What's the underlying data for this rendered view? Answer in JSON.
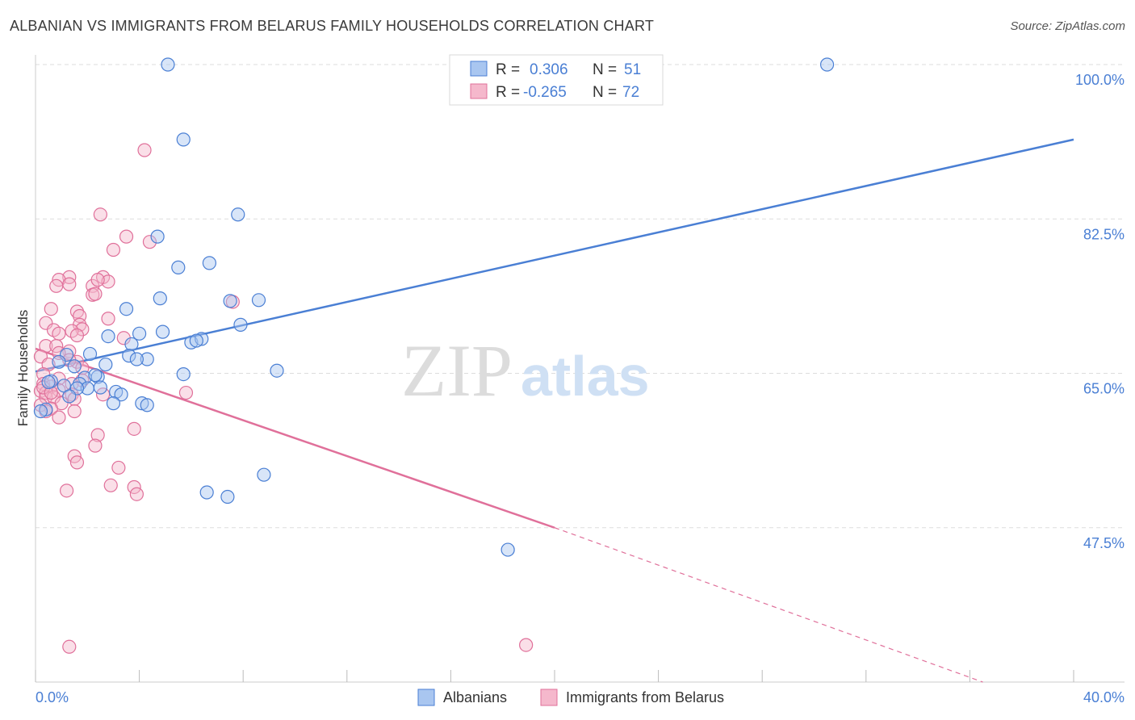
{
  "header": {
    "title": "ALBANIAN VS IMMIGRANTS FROM BELARUS FAMILY HOUSEHOLDS CORRELATION CHART",
    "source": "Source: ZipAtlas.com"
  },
  "colors": {
    "blue": "#4a7fd4",
    "blue_fill": "#a9c6f0",
    "pink": "#e0709a",
    "pink_fill": "#f5b8cc",
    "axis_label": "#4a7fd4",
    "grid": "#dddddd"
  },
  "watermark": {
    "zip": "ZIP",
    "atlas": "atlas"
  },
  "chart_data": {
    "type": "scatter",
    "title": "ALBANIAN VS IMMIGRANTS FROM BELARUS FAMILY HOUSEHOLDS CORRELATION CHART",
    "xlabel": "",
    "ylabel": "Family Households",
    "xlim": [
      0,
      40
    ],
    "ylim": [
      30,
      100
    ],
    "x_tick_labels": [
      "0.0%",
      "40.0%"
    ],
    "y_ticks": [
      47.5,
      65.0,
      82.5,
      100.0
    ],
    "y_tick_labels": [
      "47.5%",
      "65.0%",
      "82.5%",
      "100.0%"
    ],
    "legend_stats": [
      {
        "r_label": "R =",
        "r_value": "0.306",
        "n_label": "N =",
        "n_value": "51"
      },
      {
        "r_label": "R =",
        "r_value": "-0.265",
        "n_label": "N =",
        "n_value": "72"
      }
    ],
    "legend_bottom": [
      "Albanians",
      "Immigrants from Belarus"
    ],
    "series": [
      {
        "name": "Albanians",
        "trend": {
          "x0": 0.0,
          "y0": 65.2,
          "x1": 40.0,
          "y1": 91.5
        },
        "points": [
          [
            5.1,
            100.0
          ],
          [
            30.5,
            100.0
          ],
          [
            5.7,
            91.5
          ],
          [
            7.8,
            83.0
          ],
          [
            4.7,
            80.5
          ],
          [
            5.5,
            77.0
          ],
          [
            6.7,
            77.5
          ],
          [
            4.8,
            73.5
          ],
          [
            8.6,
            73.3
          ],
          [
            7.5,
            73.2
          ],
          [
            3.5,
            72.3
          ],
          [
            7.9,
            70.5
          ],
          [
            4.0,
            69.5
          ],
          [
            4.9,
            69.7
          ],
          [
            2.8,
            69.2
          ],
          [
            6.0,
            68.5
          ],
          [
            6.4,
            68.9
          ],
          [
            6.2,
            68.7
          ],
          [
            3.7,
            68.3
          ],
          [
            3.6,
            67.0
          ],
          [
            4.3,
            66.6
          ],
          [
            3.9,
            66.6
          ],
          [
            2.1,
            67.2
          ],
          [
            1.2,
            67.1
          ],
          [
            0.9,
            66.3
          ],
          [
            1.5,
            65.8
          ],
          [
            2.7,
            66.0
          ],
          [
            9.3,
            65.3
          ],
          [
            5.7,
            64.9
          ],
          [
            2.4,
            64.6
          ],
          [
            1.9,
            64.5
          ],
          [
            0.6,
            64.1
          ],
          [
            1.7,
            63.8
          ],
          [
            1.1,
            63.6
          ],
          [
            2.0,
            63.3
          ],
          [
            2.5,
            63.4
          ],
          [
            1.6,
            63.3
          ],
          [
            3.1,
            62.9
          ],
          [
            3.3,
            62.6
          ],
          [
            1.3,
            62.4
          ],
          [
            4.1,
            61.6
          ],
          [
            4.3,
            61.4
          ],
          [
            3.0,
            61.6
          ],
          [
            0.4,
            60.9
          ],
          [
            0.2,
            60.7
          ],
          [
            8.8,
            53.5
          ],
          [
            6.6,
            51.5
          ],
          [
            7.4,
            51.0
          ],
          [
            18.2,
            45.0
          ],
          [
            0.5,
            64.0
          ],
          [
            2.3,
            64.8
          ]
        ]
      },
      {
        "name": "Immigrants from Belarus",
        "trend": {
          "x0": 0.0,
          "y0": 67.8,
          "x1": 20.0,
          "y1": 47.5
        },
        "trend_dashed": {
          "x0": 20.0,
          "y0": 47.5,
          "x1": 36.5,
          "y1": 30.0
        },
        "points": [
          [
            4.2,
            90.3
          ],
          [
            2.5,
            83.0
          ],
          [
            3.5,
            80.5
          ],
          [
            4.4,
            79.9
          ],
          [
            3.0,
            79.0
          ],
          [
            1.3,
            75.9
          ],
          [
            2.6,
            75.9
          ],
          [
            2.8,
            75.4
          ],
          [
            0.9,
            75.6
          ],
          [
            1.3,
            75.1
          ],
          [
            0.8,
            74.9
          ],
          [
            2.2,
            74.9
          ],
          [
            2.4,
            75.6
          ],
          [
            2.2,
            73.9
          ],
          [
            2.3,
            74.0
          ],
          [
            7.6,
            73.1
          ],
          [
            0.6,
            72.3
          ],
          [
            1.6,
            72.0
          ],
          [
            1.7,
            71.5
          ],
          [
            2.8,
            71.2
          ],
          [
            1.7,
            70.5
          ],
          [
            0.4,
            70.7
          ],
          [
            1.8,
            70.0
          ],
          [
            0.7,
            69.9
          ],
          [
            1.4,
            69.8
          ],
          [
            3.4,
            69.0
          ],
          [
            0.9,
            69.5
          ],
          [
            1.6,
            69.3
          ],
          [
            0.4,
            68.1
          ],
          [
            0.8,
            68.1
          ],
          [
            1.3,
            67.5
          ],
          [
            0.9,
            67.3
          ],
          [
            0.2,
            66.9
          ],
          [
            1.6,
            66.3
          ],
          [
            1.3,
            66.5
          ],
          [
            0.5,
            66.0
          ],
          [
            1.8,
            65.6
          ],
          [
            0.3,
            64.9
          ],
          [
            0.9,
            64.4
          ],
          [
            1.8,
            64.2
          ],
          [
            0.3,
            63.8
          ],
          [
            1.4,
            63.8
          ],
          [
            0.6,
            63.5
          ],
          [
            0.2,
            63.0
          ],
          [
            0.4,
            62.8
          ],
          [
            0.9,
            63.1
          ],
          [
            0.4,
            62.3
          ],
          [
            0.7,
            62.3
          ],
          [
            1.4,
            62.6
          ],
          [
            2.6,
            62.6
          ],
          [
            1.5,
            62.1
          ],
          [
            5.8,
            62.8
          ],
          [
            0.2,
            61.4
          ],
          [
            1.0,
            61.6
          ],
          [
            0.6,
            61.0
          ],
          [
            0.4,
            60.7
          ],
          [
            1.5,
            60.7
          ],
          [
            0.9,
            60.0
          ],
          [
            3.8,
            58.7
          ],
          [
            2.4,
            58.0
          ],
          [
            2.3,
            56.8
          ],
          [
            1.5,
            55.6
          ],
          [
            1.6,
            54.9
          ],
          [
            3.2,
            54.3
          ],
          [
            2.9,
            52.3
          ],
          [
            3.8,
            52.1
          ],
          [
            1.2,
            51.7
          ],
          [
            3.9,
            51.3
          ],
          [
            0.3,
            63.4
          ],
          [
            1.3,
            34.0
          ],
          [
            18.9,
            34.2
          ],
          [
            0.6,
            62.8
          ]
        ]
      }
    ]
  }
}
